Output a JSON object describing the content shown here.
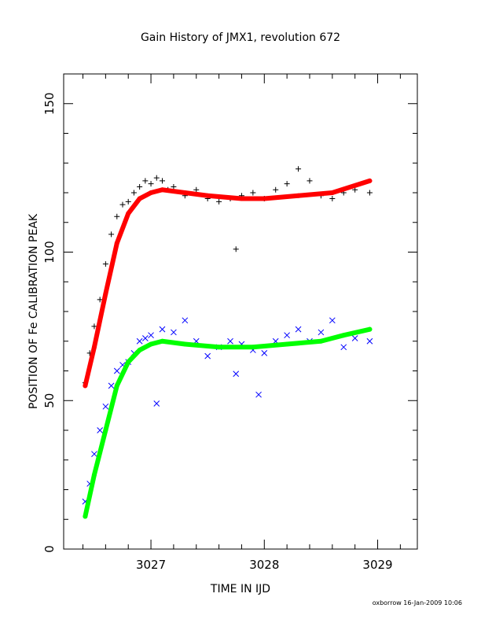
{
  "chart_data": {
    "type": "scatter",
    "title": "Gain History of JMX1, revolution 672",
    "xlabel": "TIME IN IJD",
    "ylabel": "POSITION OF Fe CALIBRATION PEAK",
    "xlim": [
      3026.23,
      3029.35
    ],
    "ylim": [
      0,
      160
    ],
    "xticks": [
      3027,
      3028,
      3029
    ],
    "xtick_labels": [
      "3027",
      "3028",
      "3029"
    ],
    "yticks": [
      0,
      50,
      100,
      150
    ],
    "ytick_labels": [
      "0",
      "50",
      "100",
      "150"
    ],
    "grid": false,
    "legend": "none",
    "series": [
      {
        "marker": "plus",
        "color": "#000000",
        "x": [
          3026.42,
          3026.46,
          3026.5,
          3026.55,
          3026.6,
          3026.65,
          3026.7,
          3026.75,
          3026.8,
          3026.85,
          3026.9,
          3026.95,
          3027.0,
          3027.05,
          3027.1,
          3027.15,
          3027.2,
          3027.3,
          3027.4,
          3027.5,
          3027.6,
          3027.7,
          3027.75,
          3027.8,
          3027.9,
          3028.0,
          3028.1,
          3028.2,
          3028.3,
          3028.4,
          3028.5,
          3028.6,
          3028.7,
          3028.8,
          3028.93
        ],
        "y": [
          56,
          66,
          75,
          84,
          96,
          106,
          112,
          116,
          117,
          120,
          122,
          124,
          123,
          125,
          124,
          121,
          122,
          119,
          121,
          118,
          117,
          118,
          101,
          119,
          120,
          118,
          121,
          123,
          128,
          124,
          119,
          118,
          120,
          121,
          120
        ]
      },
      {
        "marker": "line",
        "color": "#ff0000",
        "x": [
          3026.42,
          3026.5,
          3026.6,
          3026.7,
          3026.8,
          3026.9,
          3027.0,
          3027.1,
          3027.3,
          3027.5,
          3027.8,
          3028.0,
          3028.3,
          3028.6,
          3028.93
        ],
        "y": [
          55,
          68,
          86,
          103,
          113,
          118,
          120,
          121,
          120,
          119,
          118,
          118,
          119,
          120,
          124
        ]
      },
      {
        "marker": "x",
        "color": "#0000ff",
        "x": [
          3026.42,
          3026.46,
          3026.5,
          3026.55,
          3026.6,
          3026.65,
          3026.7,
          3026.75,
          3026.8,
          3026.85,
          3026.9,
          3026.95,
          3027.0,
          3027.05,
          3027.1,
          3027.2,
          3027.3,
          3027.4,
          3027.5,
          3027.6,
          3027.7,
          3027.75,
          3027.8,
          3027.9,
          3027.95,
          3028.0,
          3028.1,
          3028.2,
          3028.3,
          3028.4,
          3028.5,
          3028.6,
          3028.7,
          3028.8,
          3028.93
        ],
        "y": [
          16,
          22,
          32,
          40,
          48,
          55,
          60,
          62,
          63,
          66,
          70,
          71,
          72,
          49,
          74,
          73,
          77,
          70,
          65,
          68,
          70,
          59,
          69,
          67,
          52,
          66,
          70,
          72,
          74,
          70,
          73,
          77,
          68,
          71,
          70
        ]
      },
      {
        "marker": "line",
        "color": "#00ff00",
        "x": [
          3026.42,
          3026.5,
          3026.6,
          3026.7,
          3026.8,
          3026.9,
          3027.0,
          3027.1,
          3027.3,
          3027.6,
          3027.9,
          3028.2,
          3028.5,
          3028.7,
          3028.93
        ],
        "y": [
          11,
          25,
          40,
          55,
          63,
          67,
          69,
          70,
          69,
          68,
          68,
          69,
          70,
          72,
          74
        ]
      }
    ]
  },
  "footer_text": "oxborrow 16-Jan-2009 10:06"
}
